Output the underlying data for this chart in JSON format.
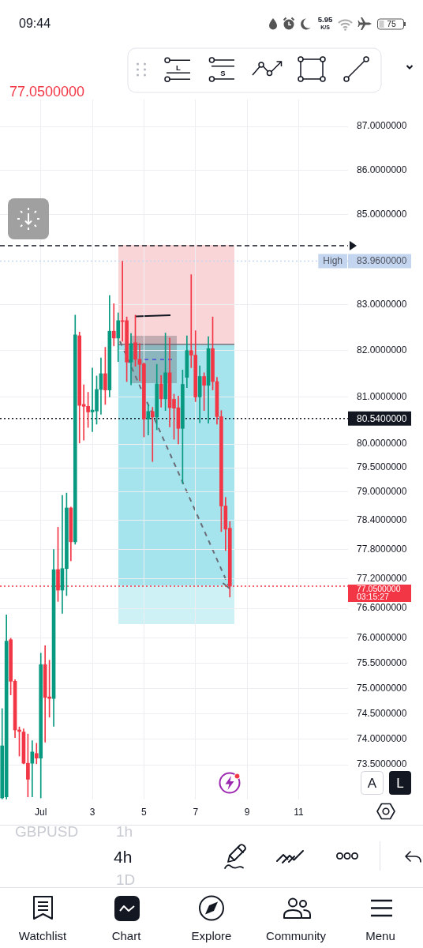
{
  "chart_data": {
    "type": "candlestick",
    "categories": [
      null,
      null,
      null,
      null,
      null,
      null,
      null,
      null,
      null,
      "Jul",
      null,
      null,
      null,
      null,
      null,
      null,
      null,
      null,
      null,
      null,
      null,
      "3",
      null,
      null,
      null,
      null,
      null,
      null,
      null,
      null,
      null,
      null,
      null,
      "5",
      null,
      null,
      null,
      null,
      null,
      null,
      null,
      null,
      null,
      null,
      null,
      "7",
      null,
      null,
      null,
      null,
      null,
      null,
      null,
      null,
      null,
      null,
      null,
      "9",
      null,
      null,
      null,
      null,
      null,
      null,
      null,
      null,
      null,
      null,
      null,
      "11",
      null,
      null,
      null,
      null,
      null,
      null,
      null,
      null,
      null,
      null,
      null
    ],
    "ohlc": [
      [
        72.86,
        74.6,
        72.84,
        73.87
      ],
      [
        72.88,
        76.47,
        72.84,
        75.94
      ],
      [
        75.97,
        76.0,
        74.87,
        75.14
      ],
      [
        75.14,
        75.17,
        74.03,
        74.18
      ],
      [
        74.18,
        74.24,
        73.67,
        74.15
      ],
      [
        74.14,
        74.2,
        73.52,
        73.53
      ],
      [
        73.53,
        74.1,
        72.88,
        73.22
      ],
      [
        73.53,
        73.97,
        72.88,
        73.75
      ],
      [
        73.72,
        73.92,
        73.52,
        73.63
      ],
      [
        73.63,
        75.7,
        72.86,
        75.47
      ],
      [
        75.47,
        75.85,
        73.94,
        74.82
      ],
      [
        74.83,
        75.56,
        74.43,
        74.8
      ],
      [
        74.8,
        77.8,
        74.25,
        77.39
      ],
      [
        77.39,
        78.26,
        76.74,
        76.97
      ],
      [
        76.97,
        78.92,
        76.5,
        77.41
      ],
      [
        77.41,
        78.97,
        76.86,
        78.66
      ],
      [
        78.66,
        78.68,
        77.57,
        77.96
      ],
      [
        77.96,
        82.77,
        77.91,
        82.34
      ],
      [
        82.32,
        82.4,
        80.02,
        80.82
      ],
      [
        80.84,
        81.26,
        80.08,
        80.8
      ],
      [
        80.8,
        81.1,
        80.35,
        80.68
      ],
      [
        80.68,
        81.62,
        80.26,
        80.72
      ],
      [
        80.7,
        81.45,
        80.42,
        81.16
      ],
      [
        81.16,
        81.84,
        80.63,
        81.5
      ],
      [
        81.5,
        82.07,
        80.84,
        81.15
      ],
      [
        81.15,
        83.2,
        81.0,
        82.42
      ],
      [
        82.42,
        83.02,
        82.1,
        82.27
      ],
      [
        82.27,
        82.82,
        81.76,
        82.65
      ],
      [
        82.65,
        83.96,
        82.2,
        82.63
      ],
      [
        82.65,
        82.73,
        81.33,
        81.75
      ],
      [
        81.75,
        82.37,
        81.26,
        82.15
      ],
      [
        82.17,
        82.77,
        81.66,
        81.81
      ],
      [
        81.81,
        82.15,
        81.35,
        81.7
      ],
      [
        81.71,
        81.73,
        80.15,
        80.53
      ],
      [
        80.53,
        80.84,
        80.19,
        80.69
      ],
      [
        80.69,
        80.78,
        79.63,
        80.57
      ],
      [
        80.57,
        81.7,
        80.3,
        81.28
      ],
      [
        81.28,
        81.46,
        80.78,
        80.96
      ],
      [
        80.96,
        82.38,
        80.71,
        81.52
      ],
      [
        81.52,
        82.27,
        80.36,
        80.77
      ],
      [
        80.95,
        81.06,
        80.1,
        80.76
      ],
      [
        80.77,
        81.02,
        80.0,
        80.33
      ],
      [
        80.33,
        81.58,
        79.17,
        81.27
      ],
      [
        81.42,
        82.32,
        81.2,
        82.0
      ],
      [
        82.0,
        83.66,
        81.63,
        81.9
      ],
      [
        81.9,
        82.43,
        80.9,
        81.0
      ],
      [
        81.0,
        81.67,
        80.45,
        81.44
      ],
      [
        81.44,
        81.52,
        80.71,
        81.25
      ],
      [
        81.25,
        82.3,
        80.44,
        82.04
      ],
      [
        82.04,
        82.73,
        81.15,
        81.33
      ],
      [
        81.33,
        81.42,
        80.42,
        80.58
      ],
      [
        80.58,
        80.71,
        78.17,
        78.7
      ],
      [
        78.7,
        78.88,
        77.78,
        78.22
      ],
      [
        78.24,
        78.38,
        76.83,
        77.05
      ],
      null,
      null,
      null,
      null,
      null,
      null,
      null,
      null,
      null,
      null,
      null,
      null,
      null,
      null,
      null,
      null,
      null,
      null,
      null,
      null,
      null,
      null,
      null,
      null,
      null,
      null,
      null
    ],
    "colors": [
      "#089981",
      "#089981",
      "#f23645",
      "#f23645",
      "#f23645",
      "#f23645",
      "#f23645",
      "#089981",
      "#f23645",
      "#089981",
      "#f23645",
      "#f23645",
      "#089981",
      "#f23645",
      "#089981",
      "#089981",
      "#f23645",
      "#089981",
      "#f23645",
      "#f23645",
      "#f23645",
      "#089981",
      "#089981",
      "#089981",
      "#f23645",
      "#089981",
      "#f23645",
      "#089981",
      "#f23645",
      "#f23645",
      "#089981",
      "#f23645",
      "#f23645",
      "#f23645",
      "#089981",
      "#f23645",
      "#089981",
      "#f23645",
      "#089981",
      "#f23645",
      "#f23645",
      "#f23645",
      "#089981",
      "#089981",
      "#f23645",
      "#f23645",
      "#089981",
      "#f23645",
      "#089981",
      "#f23645",
      "#f23645",
      "#f23645",
      "#f23645",
      "#f23645",
      null,
      null,
      null,
      null,
      null,
      null,
      null,
      null,
      null,
      null,
      null,
      null,
      null,
      null,
      null,
      null,
      null,
      null,
      null,
      null,
      null,
      null,
      null,
      null,
      null,
      null,
      null
    ],
    "ylim": [
      72.83,
      87.62
    ],
    "yticks": [
      {
        "value": 87,
        "label": "87.0000000"
      },
      {
        "value": 86,
        "label": "86.0000000"
      },
      {
        "value": 85,
        "label": "85.0000000"
      },
      {
        "value": 83,
        "label": "83.0000000"
      },
      {
        "value": 82,
        "label": "82.0000000"
      },
      {
        "value": 81,
        "label": "81.0000000"
      },
      {
        "value": 80,
        "label": "80.0000000"
      },
      {
        "value": 79.5,
        "label": "79.5000000"
      },
      {
        "value": 79,
        "label": "79.0000000"
      },
      {
        "value": 78.4,
        "label": "78.4000000"
      },
      {
        "value": 77.8,
        "label": "77.8000000"
      },
      {
        "value": 77.2,
        "label": "77.2000000"
      },
      {
        "value": 76.6,
        "label": "76.6000000"
      },
      {
        "value": 76,
        "label": "76.0000000"
      },
      {
        "value": 75.5,
        "label": "75.5000000"
      },
      {
        "value": 75,
        "label": "75.0000000"
      },
      {
        "value": 74.5,
        "label": "74.5000000"
      },
      {
        "value": 74,
        "label": "74.0000000"
      },
      {
        "value": 73.5,
        "label": "73.5000000"
      }
    ],
    "log": true,
    "grid": true,
    "ref_lines": [
      {
        "axis": "y",
        "value": 84.3,
        "color": "#131722",
        "line_style": "dashed"
      },
      {
        "axis": "y",
        "value": 83.96,
        "label": "83.9600000",
        "color": "#c3d5ef",
        "line_style": "dotted"
      },
      {
        "axis": "y",
        "value": 80.54,
        "label": "80.5400000",
        "color": "#131722",
        "line_style": "dotted"
      },
      {
        "axis": "y",
        "value": 77.05,
        "label": "77.0500000",
        "color": "#f23645",
        "line_style": "dotted"
      }
    ],
    "annotations": [
      "09:44",
      "5.95",
      "K/S",
      "75",
      "L",
      "S",
      "A",
      "L",
      "GBPUSD",
      "1h",
      "4h",
      "1D",
      "Watchlist",
      "Chart",
      "Explore",
      "Community",
      "Menu",
      "77.0500000",
      "High",
      "03:15:27"
    ]
  }
}
